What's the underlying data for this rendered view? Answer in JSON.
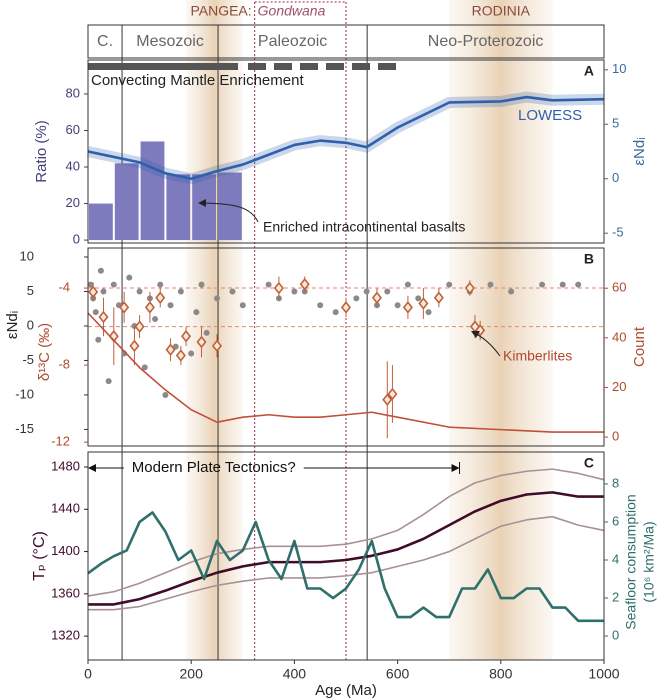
{
  "timescale": {
    "supercontinents": [
      {
        "name": "PANGEA:",
        "sub": "Gondwana",
        "range": [
          323,
          500
        ]
      },
      {
        "name": "RODINIA",
        "range": [
          700,
          900
        ]
      }
    ],
    "eras": [
      {
        "name": "C.",
        "range": [
          0,
          66
        ]
      },
      {
        "name": "Mesozoic",
        "range": [
          66,
          252
        ]
      },
      {
        "name": "Paleozoic",
        "range": [
          252,
          541
        ]
      },
      {
        "name": "Neo-Proterozoic",
        "range": [
          541,
          1000
        ]
      }
    ],
    "highlights": [
      [
        190,
        300
      ],
      [
        700,
        900
      ]
    ]
  },
  "chart_data": [
    {
      "type": "histogram",
      "label": "A",
      "ylabel": "Ratio (%)",
      "y2label": "εNdᵢ",
      "ylim": [
        -1.6,
        98.6
      ],
      "yticks": [
        0,
        20,
        40,
        60,
        80
      ],
      "y2lim": [
        -5.9,
        10.9
      ],
      "y2ticks": [
        -5,
        0,
        5,
        10
      ],
      "bins": [
        0,
        50,
        100,
        150,
        200,
        250,
        300
      ],
      "counts": [
        20,
        42,
        54,
        36,
        36,
        37
      ],
      "color": "#7d7abd",
      "series": [
        {
          "name": "LOWESS",
          "color": "#2f5fad",
          "axis": "y2",
          "marker": "line",
          "band": true,
          "x": [
            0,
            50,
            100,
            150,
            200,
            250,
            300,
            350,
            400,
            450,
            500,
            540,
            600,
            700,
            800,
            850,
            900,
            1000
          ],
          "values": [
            2.5,
            2.0,
            1.5,
            0.5,
            0,
            0.7,
            1.3,
            2.2,
            3.1,
            3.5,
            3.3,
            2.9,
            4.7,
            7.0,
            7.1,
            7.5,
            7.2,
            7.3
          ]
        }
      ],
      "annotations": [
        "Convecting Mantle Enrichement",
        "Enriched intracontinental basalts"
      ]
    },
    {
      "type": "scatter",
      "label": "B",
      "ylabel": "εNdᵢ",
      "y3label": "δ¹³C (‰)",
      "y2label": "Count",
      "ylim": [
        -17.4,
        11.3
      ],
      "yticks": [
        -15,
        -10,
        -5,
        0,
        5,
        10
      ],
      "y3lim": [
        -12.2,
        -1.92
      ],
      "y3ticks": [
        -12,
        -8,
        -4
      ],
      "y2lim": [
        -3.6,
        76.2
      ],
      "y2ticks": [
        0,
        20,
        40,
        60
      ],
      "reference_lines": [
        -4,
        -6
      ],
      "series": [
        {
          "color": "#8a8a8a",
          "axis": "y",
          "marker": "dot",
          "x": [
            5,
            10,
            15,
            20,
            25,
            30,
            40,
            50,
            60,
            70,
            80,
            90,
            100,
            110,
            120,
            130,
            140,
            150,
            160,
            170,
            180,
            200,
            210,
            220,
            230,
            250,
            280,
            300,
            350,
            370,
            400,
            420,
            450,
            480,
            520,
            540,
            560,
            580,
            600,
            620,
            640,
            660,
            700,
            740,
            780,
            820,
            880,
            920,
            950
          ],
          "values": [
            6,
            4,
            2,
            -2,
            8,
            5,
            -8,
            6,
            3,
            -4,
            7,
            0,
            5,
            -6,
            4,
            1,
            6,
            -10,
            3,
            -3,
            5,
            -4,
            2,
            6,
            -1,
            4,
            5,
            3,
            6,
            4,
            5,
            5,
            3,
            2,
            4,
            5,
            3,
            5,
            3,
            6,
            4,
            2,
            6,
            5,
            6,
            5,
            6,
            6,
            6
          ]
        },
        {
          "name": "Kimberlites",
          "color": "#c0603a",
          "axis": "y3",
          "marker": "diamond",
          "x": [
            10,
            30,
            50,
            70,
            90,
            100,
            120,
            140,
            160,
            180,
            190,
            220,
            250,
            370,
            420,
            500,
            560,
            580,
            590,
            620,
            650,
            680,
            740,
            750,
            760
          ],
          "values": [
            -4.2,
            -5.5,
            -6.5,
            -5,
            -7,
            -6,
            -5,
            -4.5,
            -7.2,
            -7.5,
            -6.5,
            -6.8,
            -7,
            -4,
            -3.8,
            -5,
            -4.5,
            -9.8,
            -9.5,
            -5,
            -4.8,
            -4.5,
            -4,
            -6,
            -6.2
          ],
          "errors": [
            0.5,
            1,
            1.5,
            0.8,
            1,
            0.6,
            0.8,
            0.5,
            0.6,
            0.5,
            0.5,
            0.8,
            0.6,
            0.6,
            0.4,
            0.5,
            0.5,
            2,
            1.5,
            0.6,
            0.8,
            0.5,
            0.4,
            0.6,
            0.5
          ]
        },
        {
          "color": "#c0503a",
          "axis": "y2",
          "marker": "thin-line",
          "x": [
            0,
            50,
            100,
            150,
            200,
            250,
            300,
            350,
            400,
            450,
            500,
            550,
            600,
            700,
            800,
            900,
            1000
          ],
          "values": [
            50,
            39,
            28,
            19,
            11,
            6,
            8,
            9,
            8,
            8,
            9,
            10,
            8,
            4,
            3,
            2,
            2
          ]
        }
      ]
    },
    {
      "type": "line",
      "label": "C",
      "ylabel": "Tₚ (°C)",
      "y2label": [
        "Seafloor consumption",
        "(10⁶ km²/Ma)"
      ],
      "xlabel": "Age (Ma)",
      "xlim": [
        0,
        1000
      ],
      "xticks": [
        0,
        200,
        400,
        600,
        800,
        1000
      ],
      "ylim": [
        1297.4,
        1494.2
      ],
      "yticks": [
        1320,
        1360,
        1400,
        1440,
        1480
      ],
      "y2lim": [
        -1.26,
        9.68
      ],
      "y2ticks": [
        0,
        2,
        4,
        6,
        8
      ],
      "annotation": {
        "text": "Modern Plate Tectonics?",
        "span": [
          0,
          720
        ]
      },
      "series": [
        {
          "color": "#a89098",
          "axis": "y",
          "marker": "thin-line",
          "x": [
            0,
            50,
            100,
            150,
            200,
            250,
            300,
            350,
            400,
            450,
            500,
            550,
            600,
            650,
            700,
            750,
            800,
            850,
            900,
            950,
            1000
          ],
          "values": [
            1358,
            1362,
            1370,
            1380,
            1390,
            1398,
            1402,
            1405,
            1405,
            1405,
            1407,
            1412,
            1420,
            1435,
            1452,
            1465,
            1472,
            1476,
            1478,
            1474,
            1468
          ]
        },
        {
          "color": "#a89098",
          "axis": "y",
          "marker": "thin-line",
          "x": [
            0,
            50,
            100,
            150,
            200,
            250,
            300,
            350,
            400,
            450,
            500,
            550,
            600,
            650,
            700,
            750,
            800,
            850,
            900,
            950,
            1000
          ],
          "values": [
            1345,
            1345,
            1348,
            1355,
            1362,
            1368,
            1372,
            1375,
            1375,
            1375,
            1377,
            1380,
            1386,
            1392,
            1400,
            1412,
            1424,
            1430,
            1433,
            1425,
            1420
          ]
        },
        {
          "color": "#3f0c2a",
          "axis": "y",
          "marker": "line",
          "x": [
            0,
            50,
            100,
            150,
            200,
            250,
            300,
            350,
            400,
            450,
            500,
            550,
            600,
            650,
            700,
            750,
            800,
            850,
            900,
            950,
            1000
          ],
          "values": [
            1350,
            1350,
            1355,
            1363,
            1372,
            1380,
            1386,
            1390,
            1390,
            1390,
            1392,
            1396,
            1402,
            1412,
            1425,
            1438,
            1448,
            1454,
            1456,
            1452,
            1452
          ]
        },
        {
          "color": "#2f6f6c",
          "axis": "y2",
          "marker": "line",
          "x": [
            0,
            25,
            50,
            75,
            100,
            125,
            150,
            175,
            200,
            225,
            250,
            275,
            300,
            325,
            350,
            375,
            400,
            425,
            450,
            475,
            500,
            525,
            550,
            575,
            600,
            625,
            650,
            675,
            700,
            725,
            750,
            775,
            800,
            825,
            850,
            875,
            900,
            925,
            950,
            975,
            1000
          ],
          "values": [
            3.3,
            3.8,
            4.2,
            4.5,
            6.0,
            6.5,
            5.5,
            4.0,
            4.5,
            3.0,
            5.0,
            4.0,
            4.5,
            6.0,
            4.0,
            3.0,
            5.0,
            2.5,
            2.5,
            2.0,
            2.5,
            3.5,
            5.0,
            2.5,
            1.0,
            1.0,
            1.5,
            1.0,
            1.0,
            2.5,
            2.5,
            3.5,
            2.0,
            2.0,
            2.5,
            2.5,
            1.5,
            1.5,
            0.8,
            0.8,
            0.8
          ]
        }
      ]
    }
  ]
}
